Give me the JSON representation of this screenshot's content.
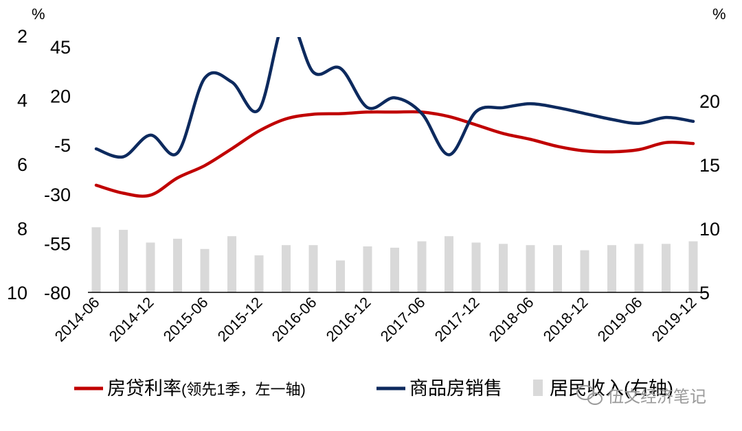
{
  "chart_data": {
    "type": "line",
    "x": [
      "2014-06",
      "2014-09",
      "2014-12",
      "2015-03",
      "2015-06",
      "2015-09",
      "2015-12",
      "2016-03",
      "2016-06",
      "2016-09",
      "2016-12",
      "2017-03",
      "2017-06",
      "2017-09",
      "2017-12",
      "2018-03",
      "2018-06",
      "2018-09",
      "2018-12",
      "2019-03",
      "2019-06",
      "2019-09",
      "2019-12"
    ],
    "x_tick_labels": [
      "2014-06",
      "2014-12",
      "2015-06",
      "2015-12",
      "2016-06",
      "2016-12",
      "2017-06",
      "2017-12",
      "2018-06",
      "2018-12",
      "2019-06",
      "2019-12"
    ],
    "axes": {
      "left_outer": {
        "unit": "%",
        "ticks": [
          "2",
          "4",
          "6",
          "8",
          "10"
        ],
        "range": [
          2,
          10
        ],
        "inverted": true
      },
      "left_inner": {
        "ticks": [
          "45",
          "20",
          "-5",
          "-30",
          "-55",
          "-80"
        ],
        "range": [
          -80,
          45
        ]
      },
      "right": {
        "unit": "%",
        "ticks": [
          "20",
          "15",
          "10",
          "5"
        ],
        "range": [
          5,
          25
        ]
      }
    },
    "series": [
      {
        "name": "房贷利率",
        "name_note": "(领先1季，左一轴)",
        "type": "line",
        "axis": "left_outer",
        "color": "#c00000",
        "values": [
          6.66,
          6.91,
          6.97,
          6.43,
          6.05,
          5.52,
          4.97,
          4.59,
          4.45,
          4.43,
          4.38,
          4.38,
          4.38,
          4.52,
          4.78,
          5.05,
          5.23,
          5.45,
          5.59,
          5.62,
          5.55,
          5.33,
          5.36
        ]
      },
      {
        "name": "商品房销售",
        "type": "line",
        "axis": "left_inner",
        "color": "#0d2a5e",
        "values": [
          -7.0,
          -11.0,
          0.0,
          -9.0,
          29.0,
          27.0,
          13.0,
          60.0,
          32.0,
          34.0,
          14.0,
          19.0,
          11.0,
          -10.0,
          12.0,
          14.0,
          16.0,
          14.0,
          11.0,
          8.0,
          6.0,
          9.0,
          7.0
        ]
      },
      {
        "name": "居民收入",
        "name_note": "(右轴)",
        "type": "bar",
        "axis": "right",
        "color": "#d9d9d9",
        "values": [
          10.1,
          9.9,
          8.9,
          9.2,
          8.4,
          9.4,
          7.9,
          8.7,
          8.7,
          7.5,
          8.6,
          8.5,
          9.0,
          9.4,
          8.9,
          8.8,
          8.7,
          8.7,
          8.3,
          8.7,
          8.8,
          8.8,
          9.0
        ]
      }
    ]
  },
  "watermark": {
    "text": "伍文经济笔记",
    "icon": "wechat-icon"
  }
}
